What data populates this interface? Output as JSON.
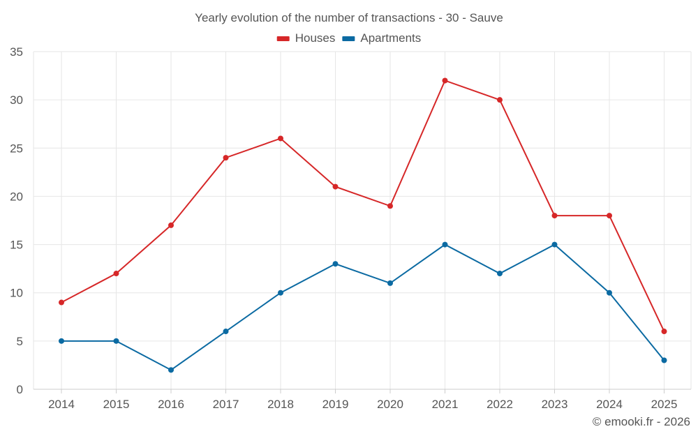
{
  "chart_data": {
    "type": "line",
    "title": "Yearly evolution of the number of transactions - 30 - Sauve",
    "xlabel": "",
    "ylabel": "",
    "categories": [
      "2014",
      "2015",
      "2016",
      "2017",
      "2018",
      "2019",
      "2020",
      "2021",
      "2022",
      "2023",
      "2024",
      "2025"
    ],
    "ylim": [
      0,
      35
    ],
    "yticks": [
      0,
      5,
      10,
      15,
      20,
      25,
      30,
      35
    ],
    "grid": true,
    "legend_position": "top-center",
    "series": [
      {
        "name": "Houses",
        "color": "#d62728",
        "values": [
          9,
          12,
          17,
          24,
          26,
          21,
          19,
          32,
          30,
          18,
          18,
          6
        ]
      },
      {
        "name": "Apartments",
        "color": "#0b6aa2",
        "values": [
          5,
          5,
          2,
          6,
          10,
          13,
          11,
          15,
          12,
          15,
          10,
          3
        ]
      }
    ]
  },
  "credit": "© emooki.fr - 2026"
}
